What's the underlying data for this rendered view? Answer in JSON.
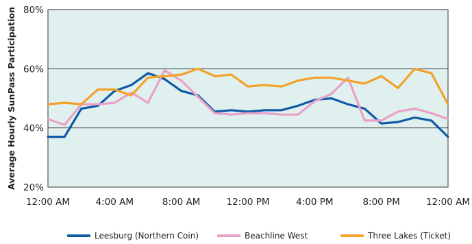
{
  "chart_data": {
    "type": "line",
    "title": "",
    "xlabel": "",
    "ylabel": "Average Hourly SunPass Participation",
    "ylim": [
      20,
      80
    ],
    "y_ticks": [
      "20%",
      "40%",
      "60%",
      "80%"
    ],
    "x_tick_labels": [
      "12:00 AM",
      "4:00 AM",
      "8:00 AM",
      "12:00 PM",
      "4:00 PM",
      "8:00 PM",
      "12:00 AM"
    ],
    "x_hours": [
      0,
      1,
      2,
      3,
      4,
      5,
      6,
      7,
      8,
      9,
      10,
      11,
      12,
      13,
      14,
      15,
      16,
      17,
      18,
      19,
      20,
      21,
      22,
      23,
      24
    ],
    "grid": "horizontal",
    "plot_background": "#dff0ee",
    "legend_position": "bottom",
    "series": [
      {
        "name": "Leesburg (Northern Coin)",
        "color": "#0e5aa7",
        "values": [
          37,
          37,
          46.5,
          47.5,
          52.5,
          54.5,
          58.5,
          56.5,
          52.5,
          51,
          45.5,
          46,
          45.5,
          46,
          46,
          47.5,
          49.5,
          50,
          48,
          46.5,
          41.5,
          42,
          43.5,
          42.5,
          37
        ]
      },
      {
        "name": "Beachline West",
        "color": "#e9a1c9",
        "values": [
          43,
          41,
          48,
          48,
          48.5,
          52,
          48.5,
          59.5,
          56,
          50.5,
          45,
          44.5,
          45,
          45,
          44.5,
          44.5,
          49,
          51.5,
          57,
          42.5,
          42.5,
          45.5,
          46.5,
          45,
          43
        ]
      },
      {
        "name": "Three Lakes (Ticket)",
        "color": "#f4a12a",
        "values": [
          48,
          48.5,
          48,
          53,
          53,
          51,
          57,
          57.5,
          58,
          60,
          57.5,
          58,
          54,
          54.5,
          54,
          56,
          57,
          57,
          56,
          55,
          57.5,
          53.5,
          60,
          58.5,
          48
        ]
      }
    ]
  }
}
